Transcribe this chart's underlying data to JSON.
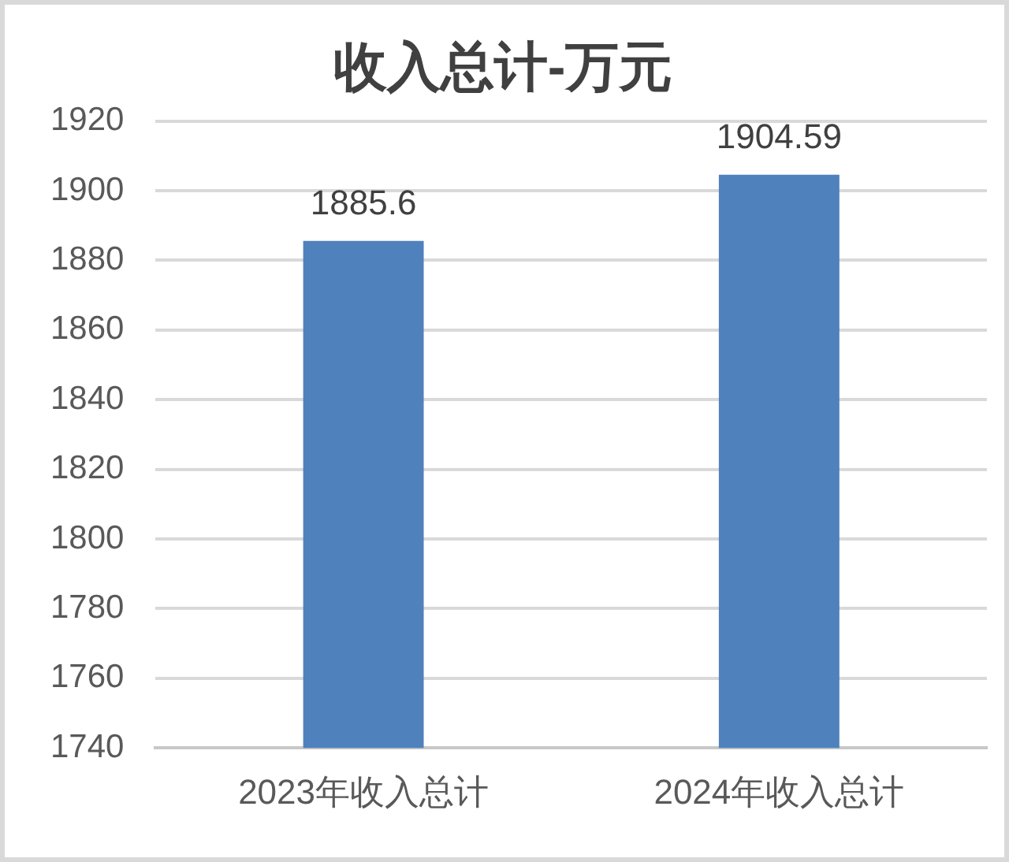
{
  "chart_data": {
    "type": "bar",
    "title": "收入总计-万元",
    "categories": [
      "2023年收入总计",
      "2024年收入总计"
    ],
    "values": [
      1885.6,
      1904.59
    ],
    "color": "#4f81bd",
    "ylim": [
      1740,
      1920
    ],
    "yticks": [
      1740,
      1760,
      1780,
      1800,
      1820,
      1840,
      1860,
      1880,
      1900,
      1920
    ],
    "grid": "y",
    "data_labels": true
  }
}
